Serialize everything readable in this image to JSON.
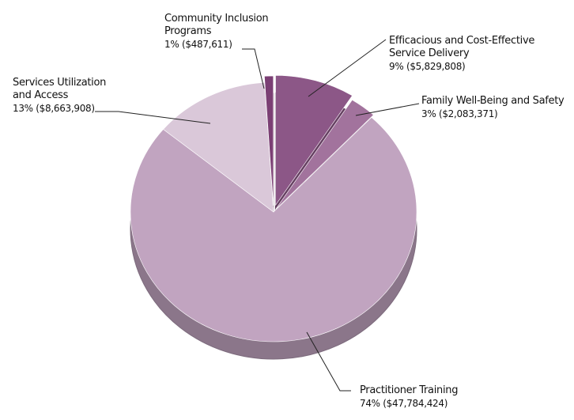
{
  "chart_data": {
    "type": "pie",
    "categories": [
      "Efficacious and Cost-Effective Service Delivery",
      "Family Well-Being and Safety",
      "Practitioner Training",
      "Services Utilization and Access",
      "Community Inclusion Programs"
    ],
    "values": [
      9,
      3,
      74,
      13,
      1
    ],
    "value_labels": [
      "9%",
      "3%",
      "74%",
      "13%",
      "1%"
    ],
    "amounts": [
      5829808,
      2083371,
      47784424,
      8663908,
      487611
    ],
    "amount_labels": [
      "($5,829,808)",
      "($2,083,371)",
      "($47,784,424)",
      "($8,663,908)",
      "($487,611)"
    ],
    "colors": [
      "#8c5787",
      "#a2739d",
      "#c1a4c0",
      "#dac8d9",
      "#7b3f74"
    ]
  }
}
